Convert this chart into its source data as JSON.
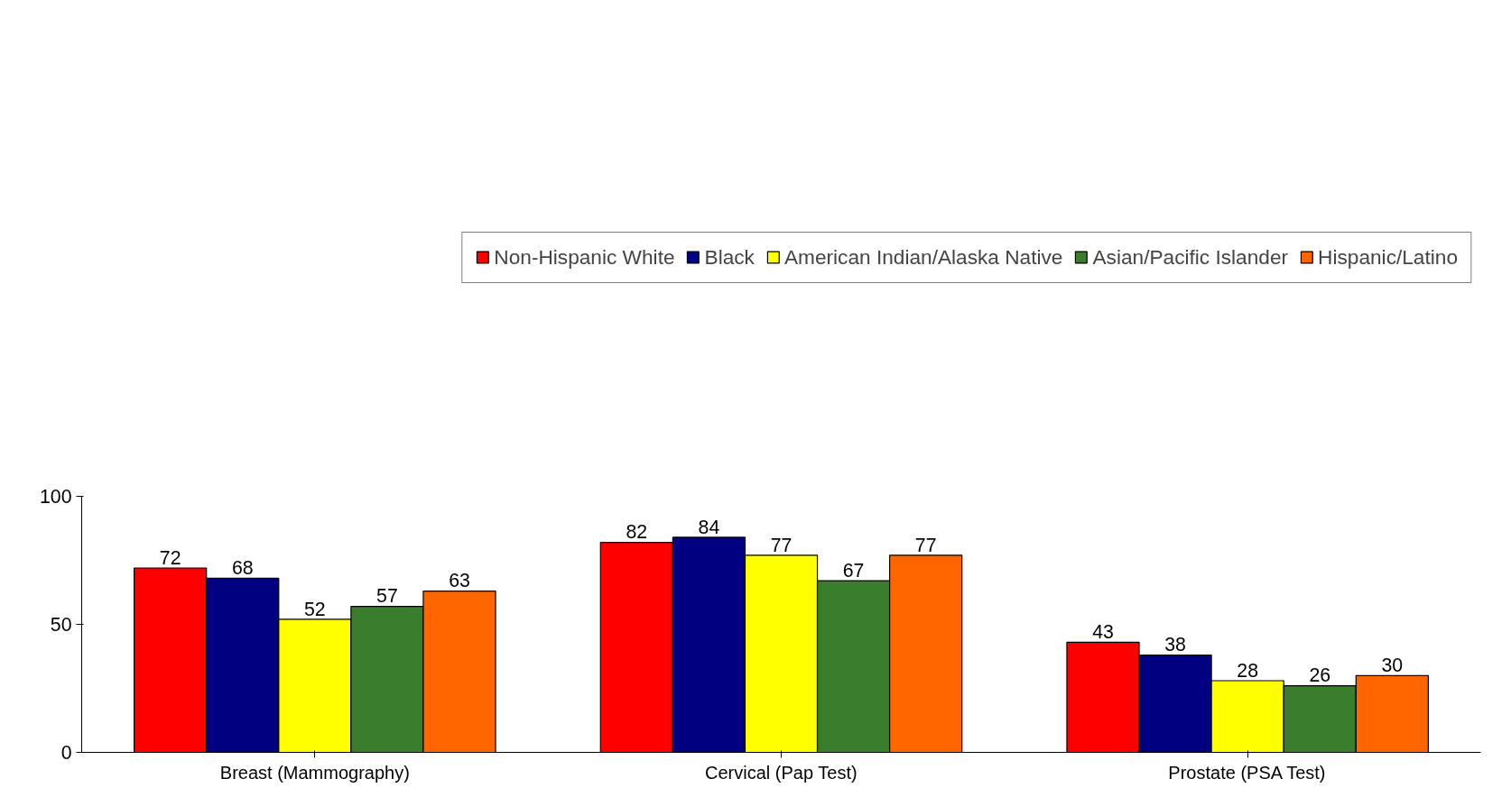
{
  "chart_data": {
    "type": "bar",
    "categories": [
      "Breast (Mammography)",
      "Cervical (Pap Test)",
      "Prostate (PSA Test)"
    ],
    "series": [
      {
        "name": "Non-Hispanic White",
        "color": "#ff0000",
        "values": [
          72,
          82,
          43
        ]
      },
      {
        "name": "Black",
        "color": "#000080",
        "values": [
          68,
          84,
          38
        ]
      },
      {
        "name": "American Indian/Alaska Native",
        "color": "#ffff00",
        "values": [
          52,
          77,
          28
        ]
      },
      {
        "name": "Asian/Pacific Islander",
        "color": "#3a7d2c",
        "values": [
          57,
          67,
          26
        ]
      },
      {
        "name": "Hispanic/Latino",
        "color": "#ff6600",
        "values": [
          63,
          77,
          30
        ]
      }
    ],
    "ylim": [
      0,
      100
    ],
    "yticks": [
      0,
      50,
      100
    ],
    "grid": false,
    "legend": "top",
    "data_labels": true
  }
}
